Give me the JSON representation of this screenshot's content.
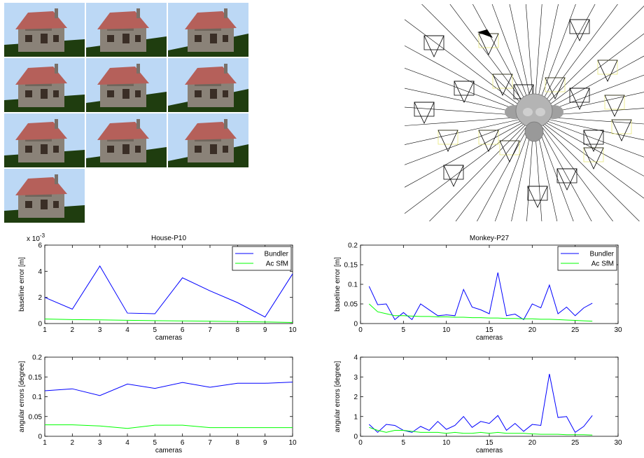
{
  "chart_data": [
    {
      "type": "line",
      "title": "House-P10",
      "xlabel": "cameras",
      "ylabel": "baseline error [m]",
      "exponent_label": "x 10",
      "exponent_power": "-3",
      "xlim": [
        1,
        10
      ],
      "ylim": [
        0,
        0.006
      ],
      "x_ticks": [
        "1",
        "2",
        "3",
        "4",
        "5",
        "6",
        "7",
        "8",
        "9",
        "10"
      ],
      "y_ticks": [
        "0",
        "2",
        "4",
        "6"
      ],
      "y_tick_values": [
        0,
        0.002,
        0.004,
        0.006
      ],
      "x": [
        1,
        2,
        3,
        4,
        5,
        6,
        7,
        8,
        9,
        10
      ],
      "series": [
        {
          "name": "Bundler",
          "color": "#0000ff",
          "values": [
            0.002,
            0.0011,
            0.0044,
            0.0008,
            0.00075,
            0.0035,
            0.0025,
            0.0016,
            0.0005,
            0.0038
          ]
        },
        {
          "name": "Ac SfM",
          "color": "#00ff00",
          "values": [
            0.00035,
            0.0003,
            0.00028,
            0.00025,
            0.00022,
            0.0002,
            0.00018,
            0.00015,
            0.00012,
            8e-05
          ]
        }
      ],
      "legend_placement": "top-right",
      "grid": false
    },
    {
      "type": "line",
      "title": "Monkey-P27",
      "xlabel": "cameras",
      "ylabel": "baseline error [m]",
      "xlim": [
        0,
        30
      ],
      "ylim": [
        0,
        0.2
      ],
      "x_ticks": [
        "0",
        "5",
        "10",
        "15",
        "20",
        "25",
        "30"
      ],
      "x_tick_values": [
        0,
        5,
        10,
        15,
        20,
        25,
        30
      ],
      "y_ticks": [
        "0",
        "0.05",
        "0.1",
        "0.15",
        "0.2"
      ],
      "y_tick_values": [
        0,
        0.05,
        0.1,
        0.15,
        0.2
      ],
      "x": [
        1,
        2,
        3,
        4,
        5,
        6,
        7,
        8,
        9,
        10,
        11,
        12,
        13,
        14,
        15,
        16,
        17,
        18,
        19,
        20,
        21,
        22,
        23,
        24,
        25,
        26,
        27
      ],
      "series": [
        {
          "name": "Bundler",
          "color": "#0000ff",
          "values": [
            0.095,
            0.048,
            0.05,
            0.01,
            0.028,
            0.01,
            0.05,
            0.035,
            0.02,
            0.022,
            0.02,
            0.087,
            0.042,
            0.035,
            0.025,
            0.13,
            0.02,
            0.024,
            0.01,
            0.05,
            0.04,
            0.098,
            0.025,
            0.042,
            0.02,
            0.04,
            0.052
          ]
        },
        {
          "name": "Ac SfM",
          "color": "#00ff00",
          "values": [
            0.05,
            0.03,
            0.025,
            0.02,
            0.02,
            0.019,
            0.018,
            0.018,
            0.017,
            0.017,
            0.016,
            0.016,
            0.015,
            0.015,
            0.014,
            0.014,
            0.013,
            0.013,
            0.012,
            0.012,
            0.011,
            0.011,
            0.01,
            0.009,
            0.008,
            0.007,
            0.006
          ]
        }
      ],
      "legend_placement": "top-right",
      "grid": false
    },
    {
      "type": "line",
      "xlabel": "cameras",
      "ylabel": "angular errors [degree]",
      "xlim": [
        1,
        10
      ],
      "ylim": [
        0,
        0.2
      ],
      "x_ticks": [
        "1",
        "2",
        "3",
        "4",
        "5",
        "6",
        "7",
        "8",
        "9",
        "10"
      ],
      "y_ticks": [
        "0",
        "0.05",
        "0.1",
        "0.15",
        "0.2"
      ],
      "y_tick_values": [
        0,
        0.05,
        0.1,
        0.15,
        0.2
      ],
      "x": [
        1,
        2,
        3,
        4,
        5,
        6,
        7,
        8,
        9,
        10
      ],
      "series": [
        {
          "color": "#0000ff",
          "values": [
            0.115,
            0.12,
            0.103,
            0.132,
            0.121,
            0.136,
            0.124,
            0.134,
            0.134,
            0.137
          ]
        },
        {
          "color": "#00ff00",
          "values": [
            0.029,
            0.029,
            0.026,
            0.02,
            0.028,
            0.028,
            0.022,
            0.022,
            0.022,
            0.022
          ]
        }
      ],
      "grid": false
    },
    {
      "type": "line",
      "xlabel": "cameras",
      "ylabel": "angular errors [degree]",
      "xlim": [
        0,
        30
      ],
      "ylim": [
        0,
        4
      ],
      "x_ticks": [
        "0",
        "5",
        "10",
        "15",
        "20",
        "25",
        "30"
      ],
      "x_tick_values": [
        0,
        5,
        10,
        15,
        20,
        25,
        30
      ],
      "y_ticks": [
        "0",
        "1",
        "2",
        "3",
        "4"
      ],
      "y_tick_values": [
        0,
        1,
        2,
        3,
        4
      ],
      "x": [
        1,
        2,
        3,
        4,
        5,
        6,
        7,
        8,
        9,
        10,
        11,
        12,
        13,
        14,
        15,
        16,
        17,
        18,
        19,
        20,
        21,
        22,
        23,
        24,
        25,
        26,
        27
      ],
      "series": [
        {
          "color": "#0000ff",
          "values": [
            0.6,
            0.2,
            0.6,
            0.55,
            0.3,
            0.2,
            0.5,
            0.3,
            0.75,
            0.35,
            0.55,
            1.0,
            0.45,
            0.75,
            0.65,
            1.05,
            0.3,
            0.65,
            0.25,
            0.6,
            0.55,
            3.15,
            0.95,
            1.0,
            0.2,
            0.5,
            1.05
          ]
        },
        {
          "color": "#00ff00",
          "values": [
            0.45,
            0.3,
            0.2,
            0.3,
            0.3,
            0.25,
            0.2,
            0.2,
            0.2,
            0.15,
            0.2,
            0.15,
            0.15,
            0.2,
            0.15,
            0.2,
            0.15,
            0.15,
            0.15,
            0.12,
            0.1,
            0.1,
            0.1,
            0.08,
            0.08,
            0.08,
            0.06
          ]
        }
      ],
      "grid": false
    }
  ],
  "thumbnails": {
    "count": 10,
    "sky_color": "#bcd8f5",
    "ground_color": "#1f3d0f",
    "roof_color": "#b5605a",
    "wall_color": "#8a8278"
  },
  "scene": {
    "object_color": "#a0a0a0",
    "camera_color": "#000000",
    "ray_color": "#000000",
    "highlight_color": "#e8e87a"
  }
}
